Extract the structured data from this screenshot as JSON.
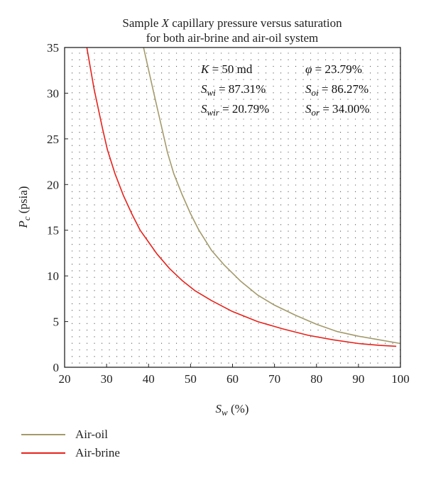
{
  "chart_data": {
    "type": "line",
    "title_parts": [
      "Sample ",
      "X",
      " capillary pressure versus saturation"
    ],
    "title_line2": "for both air-brine and air-oil system",
    "xlabel_main": "S",
    "xlabel_sub": "w",
    "xlabel_unit": " (%)",
    "ylabel_main": "P",
    "ylabel_sub": "c",
    "ylabel_unit": " (psia)",
    "xlim": [
      20,
      100
    ],
    "ylim": [
      0,
      35
    ],
    "xticks": [
      20,
      30,
      40,
      50,
      60,
      70,
      80,
      90,
      100
    ],
    "yticks": [
      0,
      5,
      10,
      15,
      20,
      25,
      30,
      35
    ],
    "grid": "dotted",
    "legend_position": "below",
    "series": [
      {
        "name": "Air-oil",
        "color": "#a39a6a",
        "x": [
          38.8,
          41,
          43,
          44.5,
          46,
          48,
          50,
          52,
          55,
          58,
          62,
          66,
          70,
          75,
          80,
          85,
          90,
          95,
          100
        ],
        "y": [
          35,
          30.5,
          26.5,
          23.5,
          21.2,
          18.9,
          16.8,
          15.0,
          12.8,
          11.2,
          9.4,
          7.9,
          6.8,
          5.7,
          4.7,
          3.9,
          3.4,
          3.0,
          2.6
        ]
      },
      {
        "name": "Air-brine",
        "color": "#e8211a",
        "x": [
          25.3,
          27,
          29,
          30.2,
          32,
          34,
          36,
          38,
          40,
          42,
          45,
          48,
          51,
          55,
          60,
          66,
          72,
          78,
          84,
          90,
          95,
          99
        ],
        "y": [
          35,
          30.5,
          26.2,
          23.8,
          21.2,
          18.8,
          16.8,
          15.0,
          13.7,
          12.4,
          10.8,
          9.5,
          8.4,
          7.3,
          6.1,
          5.0,
          4.2,
          3.5,
          3.0,
          2.6,
          2.4,
          2.3
        ]
      }
    ],
    "annotations": {
      "k_label": "K",
      "k_value": " = 50 md",
      "phi_label": "φ",
      "phi_value": " = 23.79%",
      "swi_main": "S",
      "swi_sub": "wi",
      "swi_value": " = 87.31%",
      "soi_main": "S",
      "soi_sub": "oi",
      "soi_value": " = 86.27%",
      "swir_main": "S",
      "swir_sub": "wir",
      "swir_value": " = 20.79%",
      "sor_main": "S",
      "sor_sub": "or",
      "sor_value": " = 34.00%"
    }
  }
}
